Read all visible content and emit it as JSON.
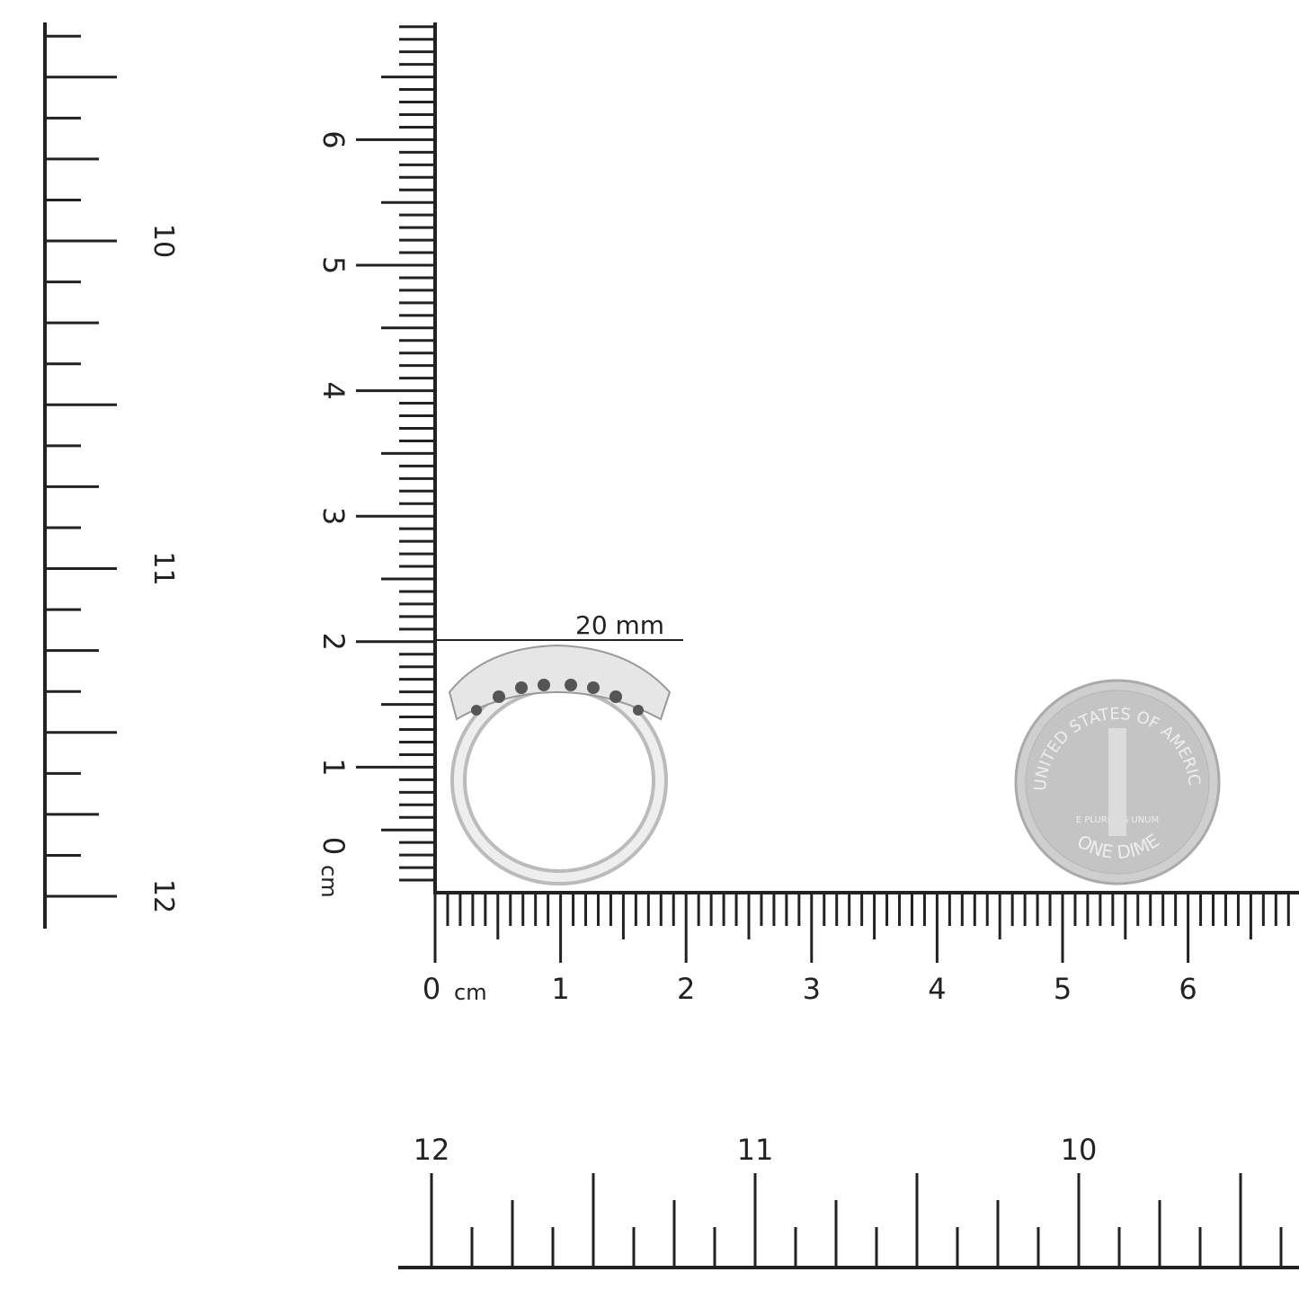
{
  "cm_ruler": {
    "unit_label": "cm",
    "horizontal_labels": [
      "0",
      "1",
      "2",
      "3",
      "4",
      "5",
      "6"
    ],
    "vertical_labels": [
      "0",
      "1",
      "2",
      "3",
      "4",
      "5",
      "6"
    ]
  },
  "ring_size_ruler_left": {
    "labels": [
      "10",
      "11",
      "12"
    ]
  },
  "ring_size_ruler_bottom": {
    "labels": [
      "12",
      "11",
      "10"
    ]
  },
  "measurement": {
    "label": "20 mm"
  },
  "coin": {
    "top_text": "UNITED STATES OF AMERICA",
    "motto": "E PLURIBUS UNUM",
    "bottom_text": "ONE DIME"
  },
  "colors": {
    "ink": "#222222",
    "metal": "#d8d8d8",
    "coin": "#c9c9c9"
  }
}
